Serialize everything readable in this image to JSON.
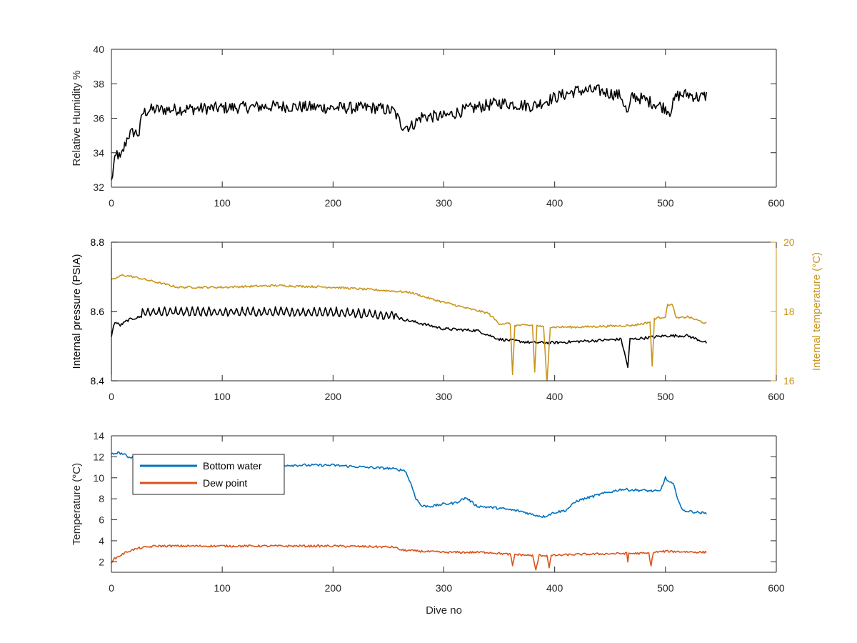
{
  "colors": {
    "black": "#000000",
    "bottom_water": "#0072BD",
    "dew_point": "#D95319",
    "internal_temperature": "#C8961E",
    "axis": "#262626"
  },
  "chart_data": [
    {
      "type": "line",
      "ylabel": "Relative Humidity %",
      "xlim": [
        0,
        600
      ],
      "ylim": [
        32,
        40
      ],
      "xticks": [
        0,
        100,
        200,
        300,
        400,
        500,
        600
      ],
      "yticks": [
        32,
        34,
        36,
        38,
        40
      ],
      "xtick_labels": [
        "0",
        "100",
        "200",
        "300",
        "400",
        "500",
        "600"
      ],
      "ytick_labels": [
        "32",
        "34",
        "36",
        "38",
        "40"
      ],
      "series": [
        {
          "color": "#000000",
          "noise": 0.35,
          "x": [
            0,
            2,
            5,
            8,
            12,
            15,
            20,
            25,
            28,
            35,
            50,
            100,
            150,
            200,
            240,
            255,
            262,
            270,
            280,
            300,
            320,
            350,
            380,
            400,
            420,
            440,
            460,
            466,
            470,
            480,
            500,
            504,
            510,
            520,
            530,
            537
          ],
          "y": [
            32.3,
            33.2,
            34.0,
            33.6,
            34.4,
            35.0,
            35.2,
            35.1,
            36.3,
            36.5,
            36.5,
            36.6,
            36.7,
            36.6,
            36.6,
            36.4,
            35.6,
            35.5,
            36.1,
            36.1,
            36.5,
            36.9,
            36.7,
            37.2,
            37.6,
            37.6,
            37.3,
            36.2,
            37.3,
            37.1,
            36.6,
            36.4,
            37.3,
            37.4,
            37.2,
            37.3
          ]
        }
      ]
    },
    {
      "type": "line",
      "ylabel": "Internal pressure (PSIA)",
      "ylabel_right": "Internal temperature (°C)",
      "xlim": [
        0,
        600
      ],
      "ylim": [
        8.4,
        8.8
      ],
      "ylim_right": [
        16,
        20
      ],
      "xticks": [
        0,
        100,
        200,
        300,
        400,
        500,
        600
      ],
      "yticks": [
        8.4,
        8.6,
        8.8
      ],
      "yticks_right": [
        16,
        18,
        20
      ],
      "xtick_labels": [
        "0",
        "100",
        "200",
        "300",
        "400",
        "500",
        "600"
      ],
      "ytick_labels": [
        "8.4",
        "8.6",
        "8.8"
      ],
      "ytick_labels_right": [
        "16",
        "18",
        "20"
      ],
      "series": [
        {
          "axis": "left",
          "color": "#000000",
          "noise": 0.004,
          "sawtooth": [
            28,
            255,
            0.025,
            5
          ],
          "x": [
            0,
            3,
            8,
            15,
            20,
            27,
            28,
            100,
            200,
            255,
            260,
            280,
            300,
            330,
            350,
            380,
            400,
            460,
            466,
            468,
            470,
            500,
            520,
            537
          ],
          "y": [
            8.53,
            8.57,
            8.56,
            8.575,
            8.58,
            8.585,
            8.61,
            8.61,
            8.61,
            8.6,
            8.58,
            8.565,
            8.55,
            8.545,
            8.52,
            8.51,
            8.51,
            8.52,
            8.44,
            8.52,
            8.52,
            8.53,
            8.53,
            8.51
          ]
        },
        {
          "axis": "right",
          "color": "#C8961E",
          "noise": 0.03,
          "x": [
            0,
            10,
            20,
            40,
            60,
            100,
            150,
            200,
            250,
            270,
            290,
            320,
            340,
            350,
            360,
            362,
            364,
            380,
            382,
            384,
            390,
            393,
            396,
            420,
            470,
            480,
            486,
            488,
            490,
            500,
            502,
            506,
            510,
            520,
            537
          ],
          "y": [
            18.9,
            19.05,
            19.0,
            18.85,
            18.7,
            18.7,
            18.75,
            18.7,
            18.6,
            18.55,
            18.35,
            18.1,
            17.95,
            17.65,
            17.65,
            16.15,
            17.6,
            17.6,
            16.25,
            17.6,
            17.55,
            15.95,
            17.55,
            17.55,
            17.6,
            17.65,
            17.7,
            16.4,
            17.8,
            17.85,
            18.2,
            18.2,
            17.8,
            17.85,
            17.65
          ]
        }
      ]
    },
    {
      "type": "line",
      "ylabel": "Temperature (°C)",
      "xlabel": "Dive no",
      "xlim": [
        0,
        600
      ],
      "ylim": [
        1,
        14
      ],
      "xticks": [
        0,
        100,
        200,
        300,
        400,
        500,
        600
      ],
      "yticks": [
        2,
        4,
        6,
        8,
        10,
        12,
        14
      ],
      "xtick_labels": [
        "0",
        "100",
        "200",
        "300",
        "400",
        "500",
        "600"
      ],
      "ytick_labels": [
        "2",
        "4",
        "6",
        "8",
        "10",
        "12",
        "14"
      ],
      "legend": "top-left",
      "series": [
        {
          "name": "Bottom water",
          "color": "#0072BD",
          "noise": 0.12,
          "x": [
            0,
            5,
            10,
            15,
            25,
            50,
            100,
            150,
            200,
            230,
            250,
            265,
            270,
            275,
            280,
            290,
            300,
            310,
            320,
            330,
            350,
            370,
            380,
            390,
            400,
            410,
            420,
            440,
            460,
            480,
            495,
            500,
            503,
            507,
            510,
            515,
            537
          ],
          "y": [
            12.2,
            12.4,
            12.3,
            12.0,
            11.9,
            11.6,
            11.4,
            11.2,
            11.2,
            11.0,
            10.9,
            10.7,
            9.5,
            8.0,
            7.3,
            7.3,
            7.5,
            7.6,
            8.1,
            7.3,
            7.1,
            6.8,
            6.5,
            6.3,
            6.7,
            6.9,
            7.8,
            8.4,
            8.9,
            8.8,
            8.7,
            10.0,
            9.6,
            9.4,
            8.4,
            6.9,
            6.6
          ]
        },
        {
          "name": "Dew point",
          "color": "#D95319",
          "noise": 0.1,
          "x": [
            0,
            3,
            8,
            15,
            25,
            40,
            100,
            200,
            255,
            262,
            280,
            300,
            340,
            360,
            362,
            364,
            380,
            383,
            386,
            393,
            395,
            397,
            420,
            465,
            466,
            467,
            485,
            487,
            489,
            500,
            537
          ],
          "y": [
            2.0,
            2.3,
            2.6,
            3.0,
            3.3,
            3.5,
            3.5,
            3.5,
            3.4,
            3.1,
            3.0,
            2.9,
            2.9,
            2.7,
            1.6,
            2.7,
            2.6,
            1.2,
            2.6,
            2.6,
            1.5,
            2.6,
            2.7,
            2.8,
            2.0,
            2.8,
            2.8,
            1.6,
            2.9,
            3.0,
            2.9
          ]
        }
      ]
    }
  ]
}
